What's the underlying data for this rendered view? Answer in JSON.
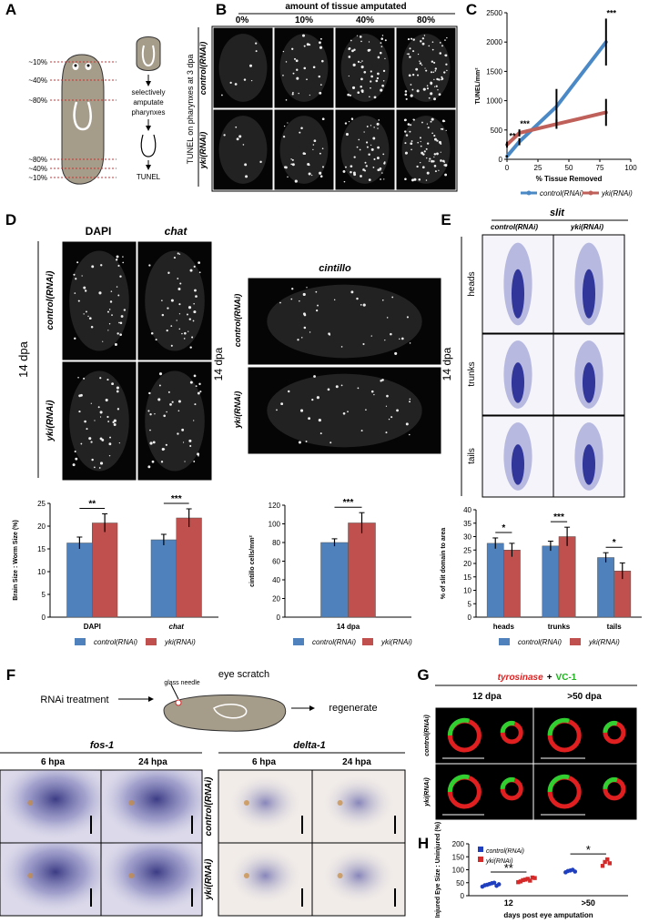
{
  "panels": {
    "letters": [
      "A",
      "B",
      "C",
      "D",
      "E",
      "F",
      "G",
      "H"
    ],
    "A": {
      "cut_labels": [
        "~10%",
        "~40%",
        "~80%",
        "~80%",
        "~40%",
        "~10%"
      ],
      "step": [
        "selectively",
        "amputate",
        "pharynxes"
      ],
      "result": "TUNEL"
    },
    "B": {
      "header": "amount of tissue amputated",
      "columns": [
        "0%",
        "10%",
        "40%",
        "80%"
      ],
      "side_label": "TUNEL on  pharynxes at 3 dpa",
      "rows": [
        "control(RNAi)",
        "yki(RNAi)"
      ]
    },
    "D": {
      "columns": [
        "DAPI",
        "chat"
      ],
      "time": "14 dpa",
      "rows": [
        "control(RNAi)",
        "yki(RNAi)"
      ],
      "cintillo_title": "cintillo",
      "cintillo_time": "14 dpa",
      "cintillo_rows": [
        "control(RNAi)",
        "yki(RNAi)"
      ]
    },
    "E": {
      "title": "slit",
      "columns": [
        "control(RNAi)",
        "yki(RNAi)"
      ],
      "rows": [
        "heads",
        "trunks",
        "tails"
      ],
      "time": "14 dpa"
    },
    "F": {
      "treatment": "RNAi treatment",
      "tool": "glass needle",
      "procedure": "eye scratch",
      "outcome": "regenerate",
      "probes": [
        "fos-1",
        "delta-1"
      ],
      "timepoints": [
        "6 hpa",
        "24 hpa",
        "6 hpa",
        "24 hpa"
      ],
      "rows": [
        "control(RNAi)",
        "yki(RNAi)"
      ]
    },
    "G": {
      "stain_1": "tyrosinase",
      "joiner": "+",
      "stain_2": "VC-1",
      "columns": [
        "12 dpa",
        ">50 dpa"
      ],
      "rows": [
        "control(RNAi)",
        "yki(RNAi)"
      ]
    }
  },
  "chart_data": [
    {
      "type": "line",
      "x": [
        0,
        10,
        40,
        80
      ],
      "xlabel": "% Tissue Removed",
      "ylabel": "TUNEL/mm²",
      "xlim": [
        0,
        100
      ],
      "xticks": [
        0,
        25,
        50,
        75,
        100
      ],
      "ylim": [
        0,
        2500
      ],
      "yticks": [
        0,
        500,
        1000,
        1500,
        2000,
        2500
      ],
      "series": [
        {
          "name": "control(RNAi)",
          "color": "#4a89c6",
          "values": [
            50,
            300,
            900,
            2000
          ],
          "errors": [
            20,
            60,
            300,
            400
          ]
        },
        {
          "name": "yki(RNAi)",
          "color": "#c0605a",
          "values": [
            250,
            450,
            600,
            800
          ],
          "errors": [
            50,
            60,
            80,
            230
          ]
        }
      ],
      "annotations": [
        "**",
        "***",
        "***"
      ]
    },
    {
      "type": "bar",
      "categories": [
        "DAPI",
        "chat"
      ],
      "ylabel": "Brain Size : Worm Size (%)",
      "ylim": [
        0,
        25
      ],
      "yticks": [
        0,
        5,
        10,
        15,
        20,
        25
      ],
      "series": [
        {
          "name": "control(RNAi)",
          "color": "#4f81bd",
          "values": [
            16.3,
            17
          ],
          "errors": [
            1.3,
            1.2
          ]
        },
        {
          "name": "yki(RNAi)",
          "color": "#c0504d",
          "values": [
            20.7,
            21.8
          ],
          "errors": [
            2,
            2
          ]
        }
      ],
      "annotations": [
        "**",
        "***"
      ]
    },
    {
      "type": "bar",
      "categories": [
        "14 dpa"
      ],
      "ylabel": "cintillo cells/mm²",
      "ylim": [
        0,
        120
      ],
      "yticks": [
        0,
        20,
        40,
        60,
        80,
        100,
        120
      ],
      "series": [
        {
          "name": "control(RNAi)",
          "color": "#4f81bd",
          "values": [
            80
          ],
          "errors": [
            4
          ]
        },
        {
          "name": "yki(RNAi)",
          "color": "#c0504d",
          "values": [
            101
          ],
          "errors": [
            11
          ]
        }
      ],
      "annotations": [
        "***"
      ]
    },
    {
      "type": "bar",
      "categories": [
        "heads",
        "trunks",
        "tails"
      ],
      "ylabel": "% of slit domain to area",
      "ylim": [
        0,
        40
      ],
      "yticks": [
        0,
        5,
        10,
        15,
        20,
        25,
        30,
        35,
        40
      ],
      "series": [
        {
          "name": "control(RNAi)",
          "color": "#4f81bd",
          "values": [
            27.5,
            26.5,
            22.2
          ],
          "errors": [
            2,
            1.8,
            1.8
          ]
        },
        {
          "name": "yki(RNAi)",
          "color": "#c0504d",
          "values": [
            25,
            30,
            17.2
          ],
          "errors": [
            2.5,
            3.5,
            3
          ]
        }
      ],
      "annotations": [
        "*",
        "***",
        "*"
      ]
    },
    {
      "type": "strip",
      "categories": [
        "12",
        ">50"
      ],
      "xlabel": "days post eye amputation",
      "ylabel": "Injured Eye Size : Uninjured (%)",
      "ylim": [
        0,
        200
      ],
      "yticks": [
        0,
        50,
        100,
        150,
        200
      ],
      "series": [
        {
          "name": "control(RNAi)",
          "color": "#1f3fbf",
          "values": [
            [
              35,
              40,
              42,
              45,
              48,
              50,
              38,
              44
            ],
            [
              90,
              95,
              97,
              100,
              93
            ]
          ]
        },
        {
          "name": "yki(RNAi)",
          "color": "#d42a2a",
          "values": [
            [
              52,
              55,
              60,
              62,
              65,
              58,
              70,
              68
            ],
            [
              115,
              130,
              140,
              125
            ]
          ]
        }
      ],
      "annotations": [
        "**",
        "*"
      ]
    }
  ]
}
